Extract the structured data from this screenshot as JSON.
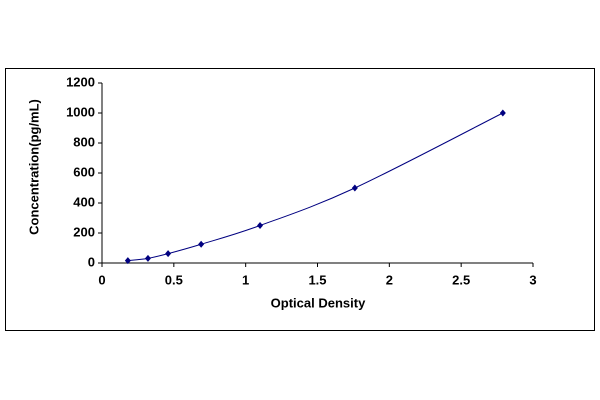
{
  "chart_data": {
    "type": "scatter",
    "line": true,
    "x_label": "Optical Density",
    "y_label": "Concentration(pg/mL)",
    "x": [
      0.18,
      0.32,
      0.46,
      0.69,
      1.1,
      1.76,
      2.79
    ],
    "values": [
      15.6,
      31.2,
      62.5,
      125,
      250,
      500,
      1000
    ],
    "color": "#000080",
    "xlim": [
      0,
      3
    ],
    "xticks": [
      0,
      0.5,
      1,
      1.5,
      2,
      2.5,
      3
    ],
    "ylim": [
      0,
      1200
    ],
    "yticks": [
      0,
      200,
      400,
      600,
      800,
      1000,
      1200
    ],
    "grid": false
  }
}
